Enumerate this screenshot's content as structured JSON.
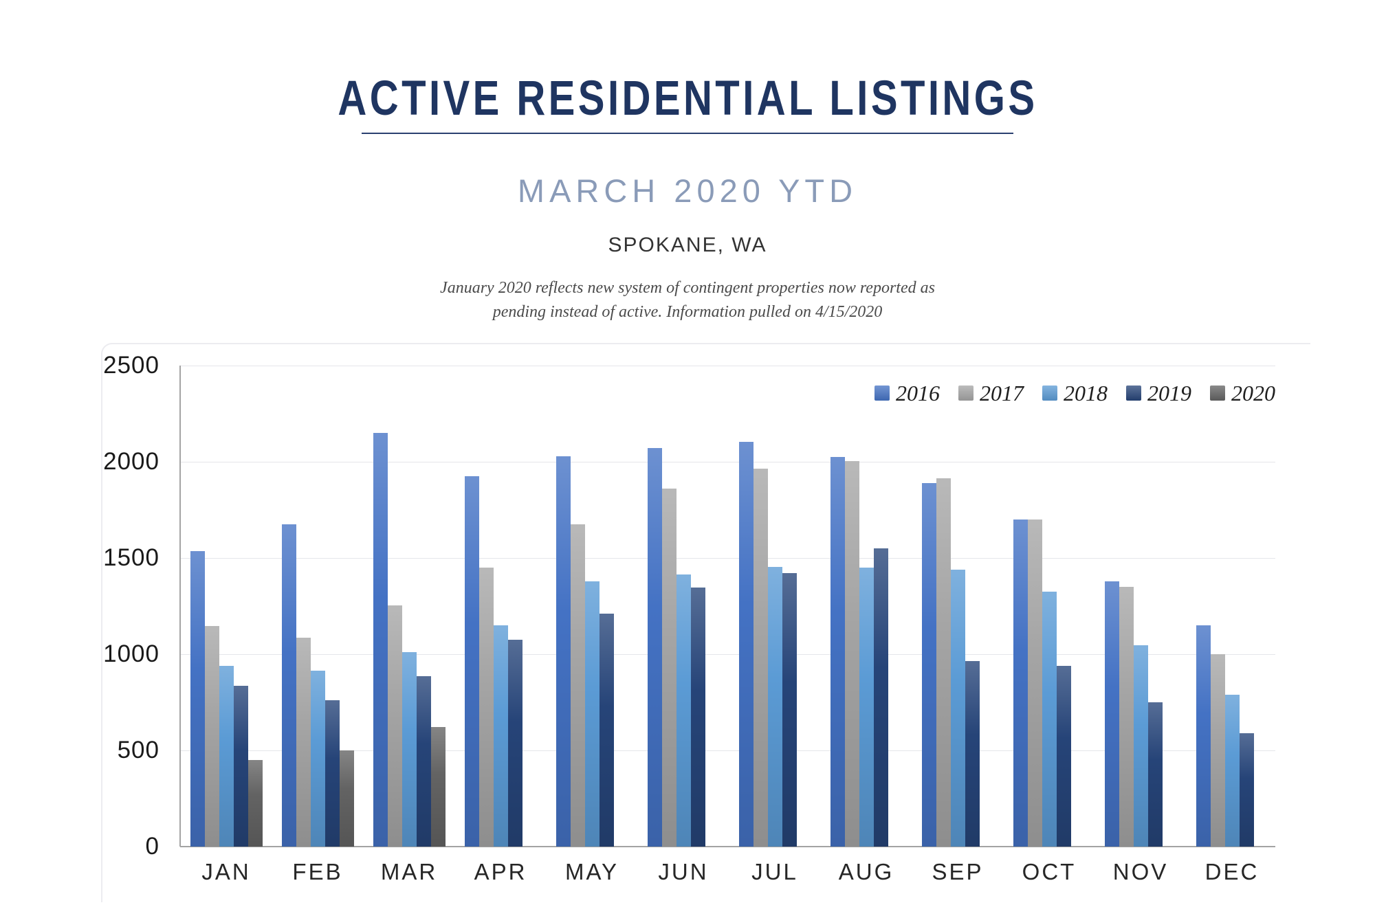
{
  "header": {
    "title": "ACTIVE RESIDENTIAL LISTINGS",
    "subtitle": "MARCH 2020 YTD",
    "location": "SPOKANE, WA",
    "note_line1": "January 2020 reflects new system of contingent properties now reported as",
    "note_line2": "pending instead of active.  Information pulled on 4/15/2020"
  },
  "chart_data": {
    "type": "bar",
    "title": "ACTIVE RESIDENTIAL LISTINGS",
    "subtitle": "MARCH 2020 YTD",
    "region": "SPOKANE, WA",
    "categories": [
      "JAN",
      "FEB",
      "MAR",
      "APR",
      "MAY",
      "JUN",
      "JUL",
      "AUG",
      "SEP",
      "OCT",
      "NOV",
      "DEC"
    ],
    "series": [
      {
        "name": "2016",
        "color": "#4472C4",
        "values": [
          1535,
          1675,
          2150,
          1925,
          2030,
          2070,
          2105,
          2025,
          1890,
          1700,
          1380,
          1150
        ]
      },
      {
        "name": "2017",
        "color": "#A5A5A5",
        "values": [
          1145,
          1085,
          1255,
          1450,
          1675,
          1860,
          1965,
          2005,
          1915,
          1700,
          1350,
          1000
        ]
      },
      {
        "name": "2018",
        "color": "#5B9BD5",
        "values": [
          940,
          915,
          1010,
          1150,
          1380,
          1415,
          1455,
          1450,
          1440,
          1325,
          1045,
          790
        ]
      },
      {
        "name": "2019",
        "color": "#264478",
        "values": [
          835,
          760,
          885,
          1075,
          1210,
          1345,
          1420,
          1550,
          965,
          940,
          750,
          590
        ]
      },
      {
        "name": "2020",
        "color": "#636363",
        "values": [
          450,
          500,
          620,
          null,
          null,
          null,
          null,
          null,
          null,
          null,
          null,
          null
        ]
      }
    ],
    "ylim": [
      0,
      2500
    ],
    "yticks": [
      0,
      500,
      1000,
      1500,
      2000,
      2500
    ],
    "grid": true,
    "legend_position": "top-right",
    "xlabel": "",
    "ylabel": ""
  }
}
